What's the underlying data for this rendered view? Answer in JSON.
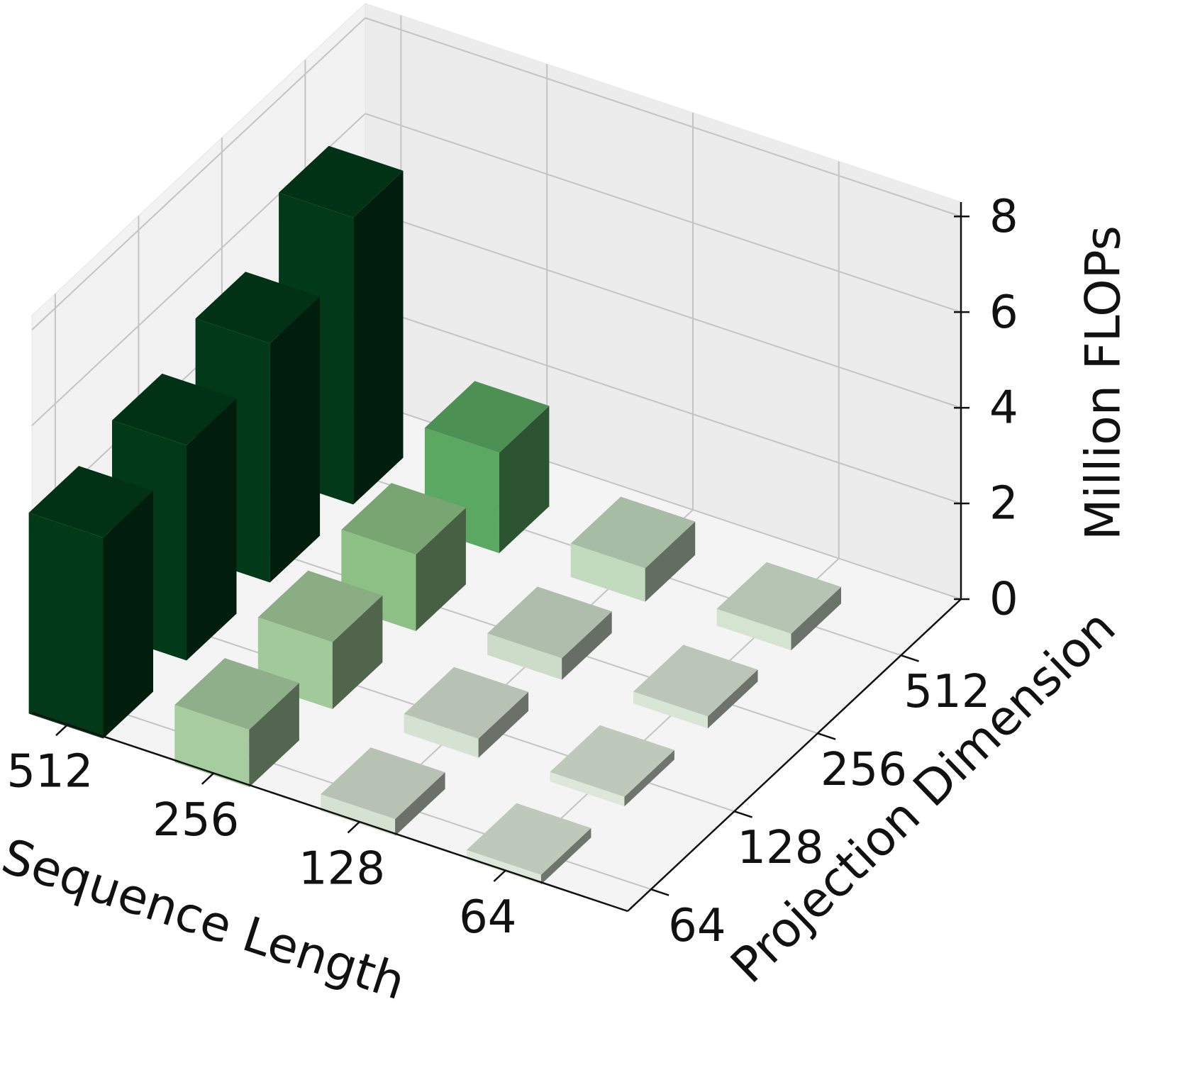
{
  "chart_data": {
    "type": "bar3d",
    "xlabel": "Sequence Length",
    "ylabel": "Projection Dimension",
    "zlabel": "Million FLOPs",
    "x_categories": [
      "512",
      "256",
      "128",
      "64"
    ],
    "y_categories": [
      "64",
      "128",
      "256",
      "512"
    ],
    "values": [
      [
        4.2,
        4.5,
        5.0,
        6.0
      ],
      [
        1.2,
        1.4,
        1.6,
        2.1
      ],
      [
        0.35,
        0.4,
        0.45,
        0.7
      ],
      [
        0.2,
        0.2,
        0.25,
        0.35
      ]
    ],
    "colors": [
      [
        "#023a19",
        "#023a19",
        "#023a19",
        "#023a19"
      ],
      [
        "#a6cca0",
        "#a1c99a",
        "#8dc085",
        "#5aa862"
      ],
      [
        "#d5e2d2",
        "#d5e2d2",
        "#ccdcc9",
        "#c2dbbf"
      ],
      [
        "#dde8da",
        "#dde8da",
        "#d9e6d6",
        "#d4e4d1"
      ]
    ],
    "zlim": [
      0,
      8.3
    ],
    "zticks": [
      0,
      2,
      4,
      6,
      8
    ],
    "grid": true
  }
}
